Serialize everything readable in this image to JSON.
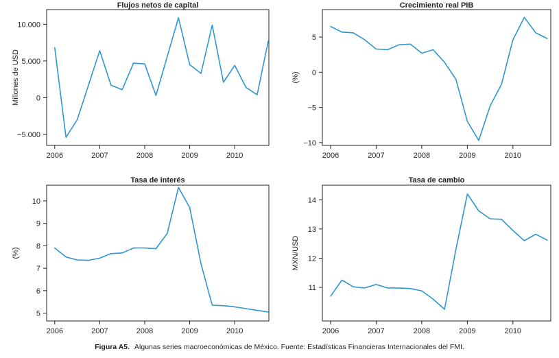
{
  "figure": {
    "caption_label": "Figura A5.",
    "caption_text": "Algunas series macroeconómicas de México. Fuente: Estadísticas Financieras Internacionales del FMI.",
    "line_color": "#2e96d0",
    "axis_color": "#231f20",
    "text_color": "#231f20",
    "background_color": "#ffffff"
  },
  "chart_data": [
    {
      "type": "line",
      "title": "Flujos netos de capital",
      "xlabel": "",
      "ylabel": "Millones de USD",
      "grid": false,
      "legend": false,
      "x": [
        2006.0,
        2006.25,
        2006.5,
        2006.75,
        2007.0,
        2007.25,
        2007.5,
        2007.75,
        2008.0,
        2008.25,
        2008.5,
        2008.75,
        2009.0,
        2009.25,
        2009.5,
        2009.75,
        2010.0,
        2010.25,
        2010.5,
        2010.75
      ],
      "values": [
        6800,
        -5400,
        -3000,
        1700,
        6400,
        1700,
        1100,
        4700,
        4600,
        300,
        5600,
        10900,
        4500,
        3300,
        9900,
        2100,
        4400,
        1400,
        400,
        7800
      ],
      "xticks": [
        2006,
        2007,
        2008,
        2009,
        2010
      ],
      "xtick_labels": [
        "2006",
        "2007",
        "2008",
        "2009",
        "2010"
      ],
      "yticks": [
        -5000,
        0,
        5000,
        10000
      ],
      "ytick_labels": [
        "−5.000",
        "0",
        "5.000",
        "10.000"
      ],
      "xlim": [
        2005.82,
        2010.76
      ],
      "ylim": [
        -6500,
        12000
      ]
    },
    {
      "type": "line",
      "title": "Crecimiento real PIB",
      "xlabel": "",
      "ylabel": "(%)",
      "grid": false,
      "legend": false,
      "x": [
        2006.0,
        2006.25,
        2006.5,
        2006.75,
        2007.0,
        2007.25,
        2007.5,
        2007.75,
        2008.0,
        2008.25,
        2008.5,
        2008.75,
        2009.0,
        2009.25,
        2009.5,
        2009.75,
        2010.0,
        2010.25,
        2010.5,
        2010.75
      ],
      "values": [
        6.5,
        5.7,
        5.6,
        4.6,
        3.3,
        3.2,
        3.9,
        4.0,
        2.7,
        3.2,
        1.4,
        -1.0,
        -7.0,
        -9.7,
        -4.8,
        -1.7,
        4.6,
        7.8,
        5.6,
        4.8
      ],
      "xticks": [
        2006,
        2007,
        2008,
        2009,
        2010
      ],
      "xtick_labels": [
        "2006",
        "2007",
        "2008",
        "2009",
        "2010"
      ],
      "yticks": [
        -10,
        -5,
        0,
        5
      ],
      "ytick_labels": [
        "−10",
        "−5",
        "0",
        "5"
      ],
      "xlim": [
        2005.82,
        2010.83
      ],
      "ylim": [
        -10.4,
        8.9
      ]
    },
    {
      "type": "line",
      "title": "Tasa de interés",
      "xlabel": "",
      "ylabel": "(%)",
      "grid": false,
      "legend": false,
      "x": [
        2006.0,
        2006.25,
        2006.5,
        2006.75,
        2007.0,
        2007.25,
        2007.5,
        2007.75,
        2008.0,
        2008.25,
        2008.5,
        2008.75,
        2009.0,
        2009.25,
        2009.5,
        2009.75,
        2010.0,
        2010.25,
        2010.5,
        2010.75
      ],
      "values": [
        7.9,
        7.5,
        7.37,
        7.35,
        7.45,
        7.65,
        7.68,
        7.9,
        7.9,
        7.87,
        8.55,
        10.6,
        9.7,
        7.2,
        5.35,
        5.33,
        5.28,
        5.2,
        5.12,
        5.05
      ],
      "xticks": [
        2006,
        2007,
        2008,
        2009,
        2010
      ],
      "xtick_labels": [
        "2006",
        "2007",
        "2008",
        "2009",
        "2010"
      ],
      "yticks": [
        5,
        6,
        7,
        8,
        9,
        10
      ],
      "ytick_labels": [
        "5",
        "6",
        "7",
        "8",
        "9",
        "10"
      ],
      "xlim": [
        2005.82,
        2010.76
      ],
      "ylim": [
        4.65,
        10.7
      ]
    },
    {
      "type": "line",
      "title": "Tasa de cambio",
      "xlabel": "",
      "ylabel": "MXN/USD",
      "grid": false,
      "legend": false,
      "x": [
        2006.0,
        2006.25,
        2006.5,
        2006.75,
        2007.0,
        2007.25,
        2007.5,
        2007.75,
        2008.0,
        2008.25,
        2008.5,
        2008.75,
        2009.0,
        2009.25,
        2009.5,
        2009.75,
        2010.0,
        2010.25,
        2010.5,
        2010.75
      ],
      "values": [
        10.7,
        11.25,
        11.02,
        10.98,
        11.1,
        10.98,
        10.98,
        10.96,
        10.88,
        10.6,
        10.25,
        12.3,
        14.2,
        13.62,
        13.35,
        13.33,
        12.95,
        12.6,
        12.82,
        12.62
      ],
      "xticks": [
        2006,
        2007,
        2008,
        2009,
        2010
      ],
      "xtick_labels": [
        "2006",
        "2007",
        "2008",
        "2009",
        "2010"
      ],
      "yticks": [
        11,
        12,
        13,
        14
      ],
      "ytick_labels": [
        "11",
        "12",
        "13",
        "14"
      ],
      "xlim": [
        2005.82,
        2010.83
      ],
      "ylim": [
        9.85,
        14.5
      ]
    }
  ]
}
